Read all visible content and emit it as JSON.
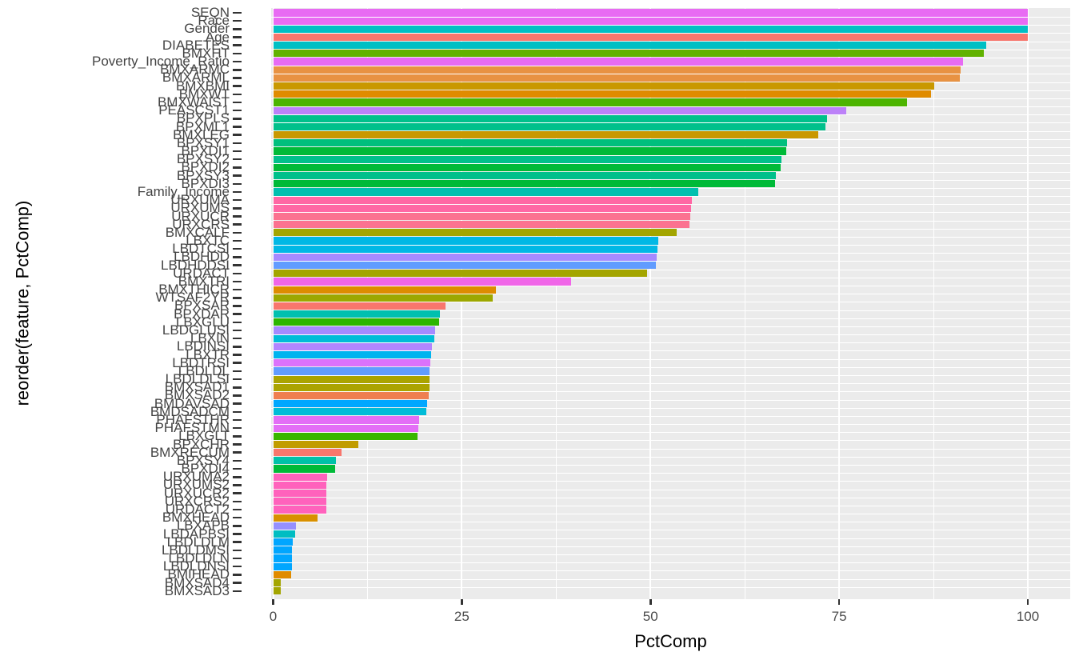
{
  "chart_data": {
    "type": "bar",
    "orientation": "horizontal",
    "title": "",
    "xlabel": "PctComp",
    "ylabel": "reorder(feature, PctComp)",
    "xlim": [
      0,
      100
    ],
    "x_ticks": [
      0,
      25,
      50,
      75,
      100
    ],
    "grid": "on",
    "legend": "none",
    "panel_background": "#EBEBEB",
    "gridline_color": "#ffffff",
    "bars": [
      {
        "feature": "SEQN",
        "pct": 100.0,
        "color": "#E86BF3"
      },
      {
        "feature": "Race",
        "pct": 100.0,
        "color": "#E86BF3"
      },
      {
        "feature": "Gender",
        "pct": 100.0,
        "color": "#00BFC4"
      },
      {
        "feature": "Age",
        "pct": 100.0,
        "color": "#F8766D"
      },
      {
        "feature": "DIABETES",
        "pct": 94.5,
        "color": "#00BFC4"
      },
      {
        "feature": "BMXHT",
        "pct": 94.2,
        "color": "#61B200"
      },
      {
        "feature": "Poverty_Income_Ratio",
        "pct": 91.4,
        "color": "#E76BF3"
      },
      {
        "feature": "BMXARMC",
        "pct": 91.1,
        "color": "#E89242"
      },
      {
        "feature": "BMXARML",
        "pct": 91.0,
        "color": "#E89242"
      },
      {
        "feature": "BMXBMI",
        "pct": 87.6,
        "color": "#C99800"
      },
      {
        "feature": "BMXWT",
        "pct": 87.2,
        "color": "#E08B00"
      },
      {
        "feature": "BMXWAIST",
        "pct": 84.0,
        "color": "#4CB400"
      },
      {
        "feature": "PEASCST1",
        "pct": 75.9,
        "color": "#BC81F8"
      },
      {
        "feature": "BPXPLS",
        "pct": 73.4,
        "color": "#00C08B"
      },
      {
        "feature": "BPXML1",
        "pct": 73.2,
        "color": "#00C08B"
      },
      {
        "feature": "BMXLEG",
        "pct": 72.2,
        "color": "#C99800"
      },
      {
        "feature": "BPXSY1",
        "pct": 68.1,
        "color": "#00BF7D"
      },
      {
        "feature": "BPXDI1",
        "pct": 68.0,
        "color": "#00BA38"
      },
      {
        "feature": "BPXSY2",
        "pct": 67.4,
        "color": "#00C08B"
      },
      {
        "feature": "BPXDI2",
        "pct": 67.3,
        "color": "#00BA38"
      },
      {
        "feature": "BPXSY3",
        "pct": 66.6,
        "color": "#00C08B"
      },
      {
        "feature": "BPXDI3",
        "pct": 66.5,
        "color": "#00BA38"
      },
      {
        "feature": "Family_Income",
        "pct": 56.3,
        "color": "#00C0AF"
      },
      {
        "feature": "URXUMA",
        "pct": 55.5,
        "color": "#FF67A4"
      },
      {
        "feature": "URXUMS",
        "pct": 55.4,
        "color": "#FF67A4"
      },
      {
        "feature": "URXUCR",
        "pct": 55.3,
        "color": "#FB7290"
      },
      {
        "feature": "URXCRS",
        "pct": 55.2,
        "color": "#FB7290"
      },
      {
        "feature": "BMXCALF",
        "pct": 53.5,
        "color": "#A3A500"
      },
      {
        "feature": "LBXTC",
        "pct": 51.0,
        "color": "#00B8E5"
      },
      {
        "feature": "LBDTCSI",
        "pct": 50.9,
        "color": "#00B8E5"
      },
      {
        "feature": "LBDHDD",
        "pct": 50.8,
        "color": "#A58AFF"
      },
      {
        "feature": "LBDHDDSI",
        "pct": 50.7,
        "color": "#619CFF"
      },
      {
        "feature": "URDACT",
        "pct": 49.5,
        "color": "#A3A500"
      },
      {
        "feature": "BMXTRI",
        "pct": 39.5,
        "color": "#F066E8"
      },
      {
        "feature": "BMXTHICR",
        "pct": 29.5,
        "color": "#DE8C00"
      },
      {
        "feature": "WTSAF2YR",
        "pct": 29.1,
        "color": "#9DA700"
      },
      {
        "feature": "BPXSAR",
        "pct": 22.8,
        "color": "#F8766D"
      },
      {
        "feature": "BPXDAR",
        "pct": 22.1,
        "color": "#00C0AF"
      },
      {
        "feature": "LBXGLU",
        "pct": 22.0,
        "color": "#2CB600"
      },
      {
        "feature": "LBDGLUSI",
        "pct": 21.5,
        "color": "#A58AFF"
      },
      {
        "feature": "LBXIN",
        "pct": 21.4,
        "color": "#00BCD8"
      },
      {
        "feature": "LBDINSI",
        "pct": 21.0,
        "color": "#B186FF"
      },
      {
        "feature": "LBXTR",
        "pct": 20.9,
        "color": "#00B4EF"
      },
      {
        "feature": "LBDTRSI",
        "pct": 20.8,
        "color": "#DB72FB"
      },
      {
        "feature": "LBDLDL",
        "pct": 20.7,
        "color": "#619CFF"
      },
      {
        "feature": "LBDLDLSI",
        "pct": 20.7,
        "color": "#ABA300"
      },
      {
        "feature": "BMXSAD1",
        "pct": 20.7,
        "color": "#ABA300"
      },
      {
        "feature": "BMXSAD2",
        "pct": 20.6,
        "color": "#EF7E50"
      },
      {
        "feature": "BMDAVSAD",
        "pct": 20.4,
        "color": "#00A7FF"
      },
      {
        "feature": "BMDSADCM",
        "pct": 20.3,
        "color": "#00BCD8"
      },
      {
        "feature": "PHAFSTHR",
        "pct": 19.3,
        "color": "#E36EF6"
      },
      {
        "feature": "PHAFSTMN",
        "pct": 19.2,
        "color": "#E36EF6"
      },
      {
        "feature": "LBXGLT",
        "pct": 19.1,
        "color": "#39B600"
      },
      {
        "feature": "BPXCHR",
        "pct": 11.3,
        "color": "#C19C00"
      },
      {
        "feature": "BMXRECUM",
        "pct": 9.1,
        "color": "#F8766D"
      },
      {
        "feature": "BPXSY4",
        "pct": 8.3,
        "color": "#00C1A9"
      },
      {
        "feature": "BPXDI4",
        "pct": 8.2,
        "color": "#00BA38"
      },
      {
        "feature": "URXUMA2",
        "pct": 7.2,
        "color": "#FF62BC"
      },
      {
        "feature": "URXUMS2",
        "pct": 7.1,
        "color": "#FF62BC"
      },
      {
        "feature": "URXUCR2",
        "pct": 7.1,
        "color": "#FF62BC"
      },
      {
        "feature": "URXCRS2",
        "pct": 7.1,
        "color": "#FF62BC"
      },
      {
        "feature": "URDACT2",
        "pct": 7.0,
        "color": "#FF62BC"
      },
      {
        "feature": "BMXHEAD",
        "pct": 5.9,
        "color": "#D89000"
      },
      {
        "feature": "LBXAPB",
        "pct": 3.0,
        "color": "#9590FF"
      },
      {
        "feature": "LBDAPBSI",
        "pct": 2.9,
        "color": "#00BDC2"
      },
      {
        "feature": "LBDLDLM",
        "pct": 2.6,
        "color": "#00A6FF"
      },
      {
        "feature": "LBDLDMSI",
        "pct": 2.5,
        "color": "#00A6FF"
      },
      {
        "feature": "LBDLDLN",
        "pct": 2.5,
        "color": "#00A6FF"
      },
      {
        "feature": "LBDLDNSI",
        "pct": 2.5,
        "color": "#00A6FF"
      },
      {
        "feature": "BMIHEAD",
        "pct": 2.4,
        "color": "#E08B00"
      },
      {
        "feature": "BMXSAD4",
        "pct": 1.0,
        "color": "#A3A500"
      },
      {
        "feature": "BMXSAD3",
        "pct": 1.0,
        "color": "#A3A500"
      }
    ]
  }
}
